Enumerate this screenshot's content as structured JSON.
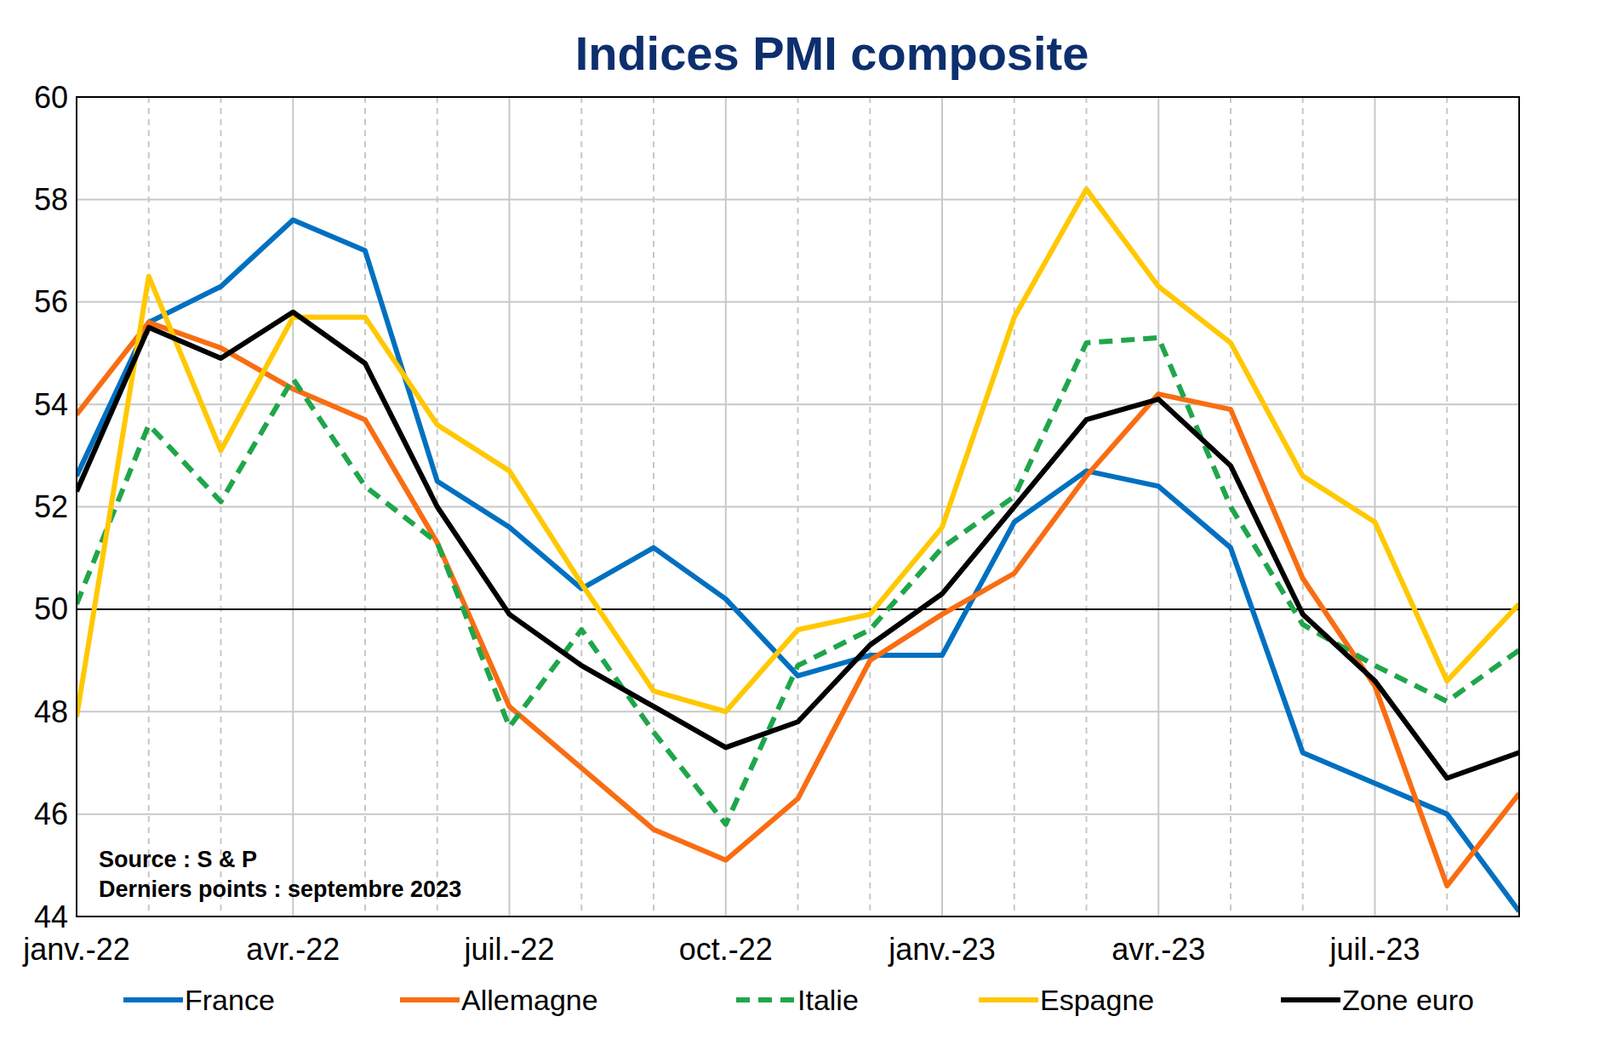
{
  "chart_data": {
    "type": "line",
    "title": "Indices PMI composite",
    "annotations": [
      "Source : S & P",
      "Derniers points : septembre 2023"
    ],
    "categories": [
      "janv.-22",
      null,
      null,
      "avr.-22",
      null,
      null,
      "juil.-22",
      null,
      null,
      "oct.-22",
      null,
      null,
      "janv.-23",
      null,
      null,
      "avr.-23",
      null,
      null,
      "juil.-23",
      null,
      null
    ],
    "series": [
      {
        "name": "France",
        "color": "#0070c0",
        "line_style": "solid",
        "values": [
          52.6,
          55.6,
          56.3,
          57.6,
          57.0,
          52.5,
          51.6,
          50.4,
          51.2,
          50.2,
          48.7,
          49.1,
          49.1,
          51.7,
          52.7,
          52.4,
          51.2,
          47.2,
          46.6,
          46.0,
          44.1
        ]
      },
      {
        "name": "Allemagne",
        "color": "#f96d12",
        "line_style": "solid",
        "values": [
          53.8,
          55.6,
          55.1,
          54.3,
          53.7,
          51.3,
          48.1,
          46.9,
          45.7,
          45.1,
          46.3,
          49.0,
          49.9,
          50.7,
          52.6,
          54.2,
          53.9,
          50.6,
          48.5,
          44.6,
          46.4
        ]
      },
      {
        "name": "Italie",
        "color": "#1fa64a",
        "line_style": "dashed",
        "values": [
          50.1,
          53.6,
          52.1,
          54.5,
          52.4,
          51.3,
          47.7,
          49.6,
          47.6,
          45.8,
          48.9,
          49.6,
          51.2,
          52.2,
          55.2,
          55.3,
          52.0,
          49.7,
          48.9,
          48.2,
          49.2
        ]
      },
      {
        "name": "Espagne",
        "color": "#ffc800",
        "line_style": "solid",
        "values": [
          47.9,
          56.5,
          53.1,
          55.7,
          55.7,
          53.6,
          52.7,
          50.5,
          48.4,
          48.0,
          49.6,
          49.9,
          51.6,
          55.7,
          58.2,
          56.3,
          55.2,
          52.6,
          51.7,
          48.6,
          50.1
        ]
      },
      {
        "name": "Zone euro",
        "color": "#000000",
        "line_style": "solid",
        "values": [
          52.3,
          55.5,
          54.9,
          55.8,
          54.8,
          52.0,
          49.9,
          48.9,
          48.1,
          47.3,
          47.8,
          49.3,
          50.3,
          52.0,
          53.7,
          54.1,
          52.8,
          49.9,
          48.6,
          46.7,
          47.2
        ]
      }
    ],
    "reference_line": 50,
    "ylim": [
      44,
      60
    ],
    "yticks": [
      44,
      46,
      48,
      50,
      52,
      54,
      56,
      58,
      60
    ],
    "grid": true,
    "legend": "bottom"
  }
}
